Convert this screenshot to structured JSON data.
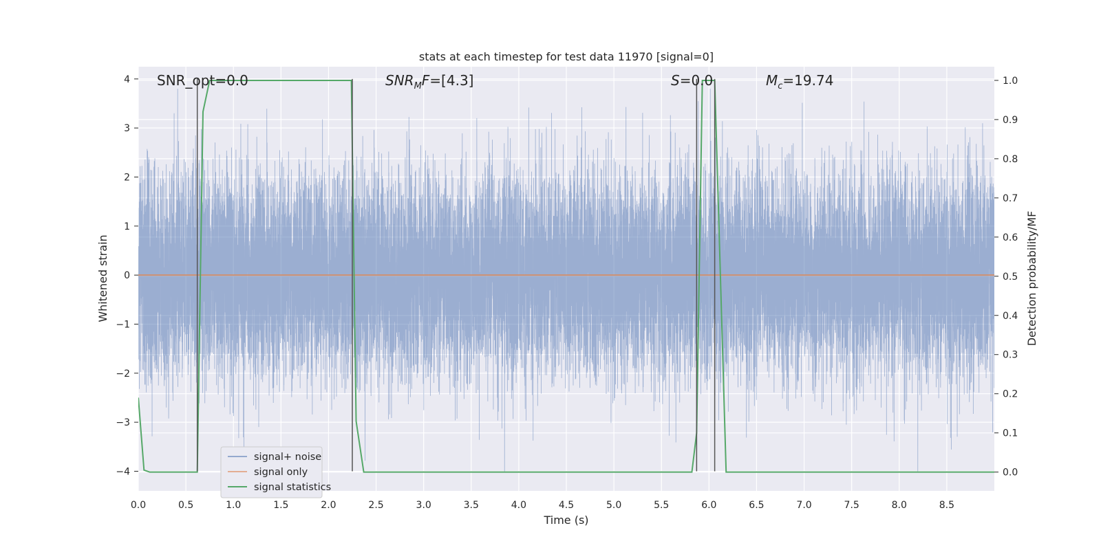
{
  "chart_data": {
    "type": "line",
    "title": "stats at each timestep for test data 11970 [signal=0]",
    "xlabel": "Time (s)",
    "ylabel": "Whitened strain",
    "y2label": "Detection probability/MF",
    "xlim": [
      0.0,
      9.0
    ],
    "ylim": [
      -4.4,
      4.25
    ],
    "y2lim": [
      -0.048,
      1.035
    ],
    "xticks": [
      0.0,
      0.5,
      1.0,
      1.5,
      2.0,
      2.5,
      3.0,
      3.5,
      4.0,
      4.5,
      5.0,
      5.5,
      6.0,
      6.5,
      7.0,
      7.5,
      8.0,
      8.5
    ],
    "xtick_labels": [
      "0.0",
      "0.5",
      "1.0",
      "1.5",
      "2.0",
      "2.5",
      "3.0",
      "3.5",
      "4.0",
      "4.5",
      "5.0",
      "5.5",
      "6.0",
      "6.5",
      "7.0",
      "7.5",
      "8.0",
      "8.5"
    ],
    "yticks": [
      4,
      3,
      2,
      1,
      0,
      -1,
      -2,
      -3,
      -4
    ],
    "ytick_labels": [
      "4",
      "3",
      "2",
      "1",
      "0",
      "−1",
      "−2",
      "−3",
      "−4"
    ],
    "y2ticks": [
      1.0,
      0.9,
      0.8,
      0.7,
      0.6,
      0.5,
      0.4,
      0.3,
      0.2,
      0.1,
      0.0
    ],
    "y2tick_labels": [
      "1.0",
      "0.9",
      "0.8",
      "0.7",
      "0.6",
      "0.5",
      "0.4",
      "0.3",
      "0.2",
      "0.1",
      "0.0"
    ],
    "grid": true,
    "legend_position": "lower-left",
    "series": [
      {
        "name": "signal+ noise",
        "color": "#4c72b0",
        "axis": "left",
        "kind": "noise",
        "sigma": 1.0,
        "sample_rate": 2048,
        "x_range": [
          0.0,
          9.0
        ]
      },
      {
        "name": "signal only",
        "color": "#dd8452",
        "axis": "left",
        "kind": "line",
        "x": [
          0.0,
          9.0
        ],
        "y": [
          0.0,
          0.0
        ]
      },
      {
        "name": "signal statistics",
        "color": "#55a868",
        "axis": "right",
        "kind": "line",
        "x": [
          0.0,
          0.06,
          0.12,
          0.62,
          0.68,
          0.75,
          2.24,
          2.29,
          2.37,
          5.82,
          5.87,
          5.93,
          6.06,
          6.18,
          6.24,
          9.0
        ],
        "y": [
          0.19,
          0.005,
          0.0,
          0.0,
          0.92,
          1.0,
          1.0,
          0.13,
          0.0,
          0.0,
          0.1,
          1.0,
          1.0,
          0.0,
          0.0,
          0.0
        ]
      }
    ],
    "vlines": [
      {
        "x": 0.62,
        "y_range": [
          -4.0,
          4.0
        ]
      },
      {
        "x": 2.25,
        "y_range": [
          -4.0,
          4.0
        ]
      },
      {
        "x": 5.87,
        "y_range": [
          -4.0,
          4.0
        ]
      },
      {
        "x": 6.06,
        "y_range": [
          -4.0,
          4.0
        ]
      }
    ],
    "annotations": [
      {
        "id": "snr-opt",
        "text": "SNR_opt=0.0",
        "x": 0.2,
        "y": 4.0
      },
      {
        "id": "snr-mf",
        "text": "SNR_MF=[4.3]",
        "x": 2.6,
        "y": 4.0
      },
      {
        "id": "s-stat",
        "text": "S=0.0",
        "x": 5.6,
        "y": 4.0
      },
      {
        "id": "chirp-mass",
        "text": "M_c=19.74",
        "x": 6.5,
        "y": 4.0
      }
    ]
  }
}
